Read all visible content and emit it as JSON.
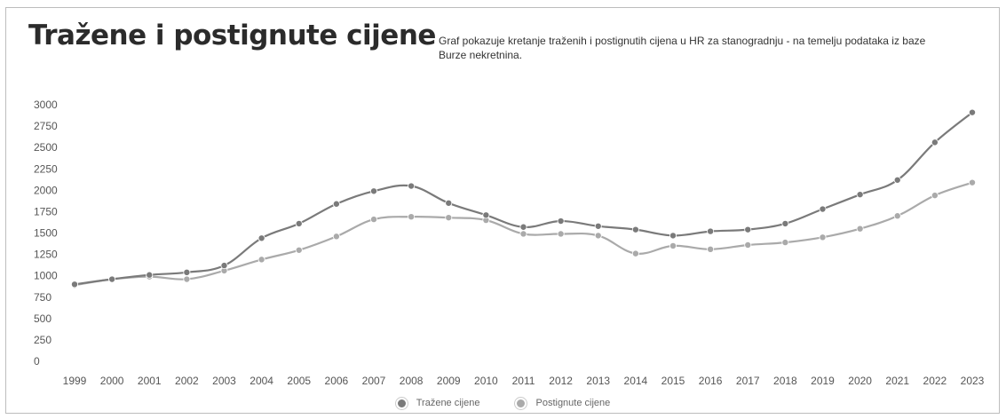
{
  "header": {
    "title": "Tražene i postignute cijene",
    "description": "Graf pokazuje kretanje traženih i postignutih cijena u HR za stanogradnju - na temelju podataka iz baze Burze nekretnina."
  },
  "chart_data": {
    "type": "line",
    "title": "Tražene i postignute cijene",
    "xlabel": "",
    "ylabel": "",
    "ylim": [
      0,
      3000
    ],
    "yticks": [
      "0",
      "250",
      "500",
      "750",
      "1000",
      "1250",
      "1500",
      "1750",
      "2000",
      "2250",
      "2500",
      "2750",
      "3000"
    ],
    "categories": [
      "1999",
      "2000",
      "2001",
      "2002",
      "2003",
      "2004",
      "2005",
      "2006",
      "2007",
      "2008",
      "2009",
      "2010",
      "2011",
      "2012",
      "2013",
      "2014",
      "2015",
      "2016",
      "2017",
      "2018",
      "2019",
      "2020",
      "2021",
      "2022",
      "2023"
    ],
    "grid": false,
    "legend_position": "bottom",
    "series": [
      {
        "name": "Tražene cijene",
        "color": "#7a7a7a",
        "values": [
          900,
          960,
          1010,
          1040,
          1120,
          1440,
          1610,
          1840,
          1990,
          2050,
          1850,
          1710,
          1570,
          1640,
          1580,
          1540,
          1470,
          1520,
          1540,
          1610,
          1780,
          1950,
          2120,
          2560,
          2910
        ]
      },
      {
        "name": "Postignute cijene",
        "color": "#aaaaaa",
        "values": [
          890,
          960,
          990,
          960,
          1060,
          1190,
          1300,
          1460,
          1660,
          1690,
          1680,
          1650,
          1490,
          1490,
          1470,
          1260,
          1350,
          1310,
          1360,
          1390,
          1450,
          1550,
          1700,
          1940,
          2090
        ]
      }
    ]
  }
}
